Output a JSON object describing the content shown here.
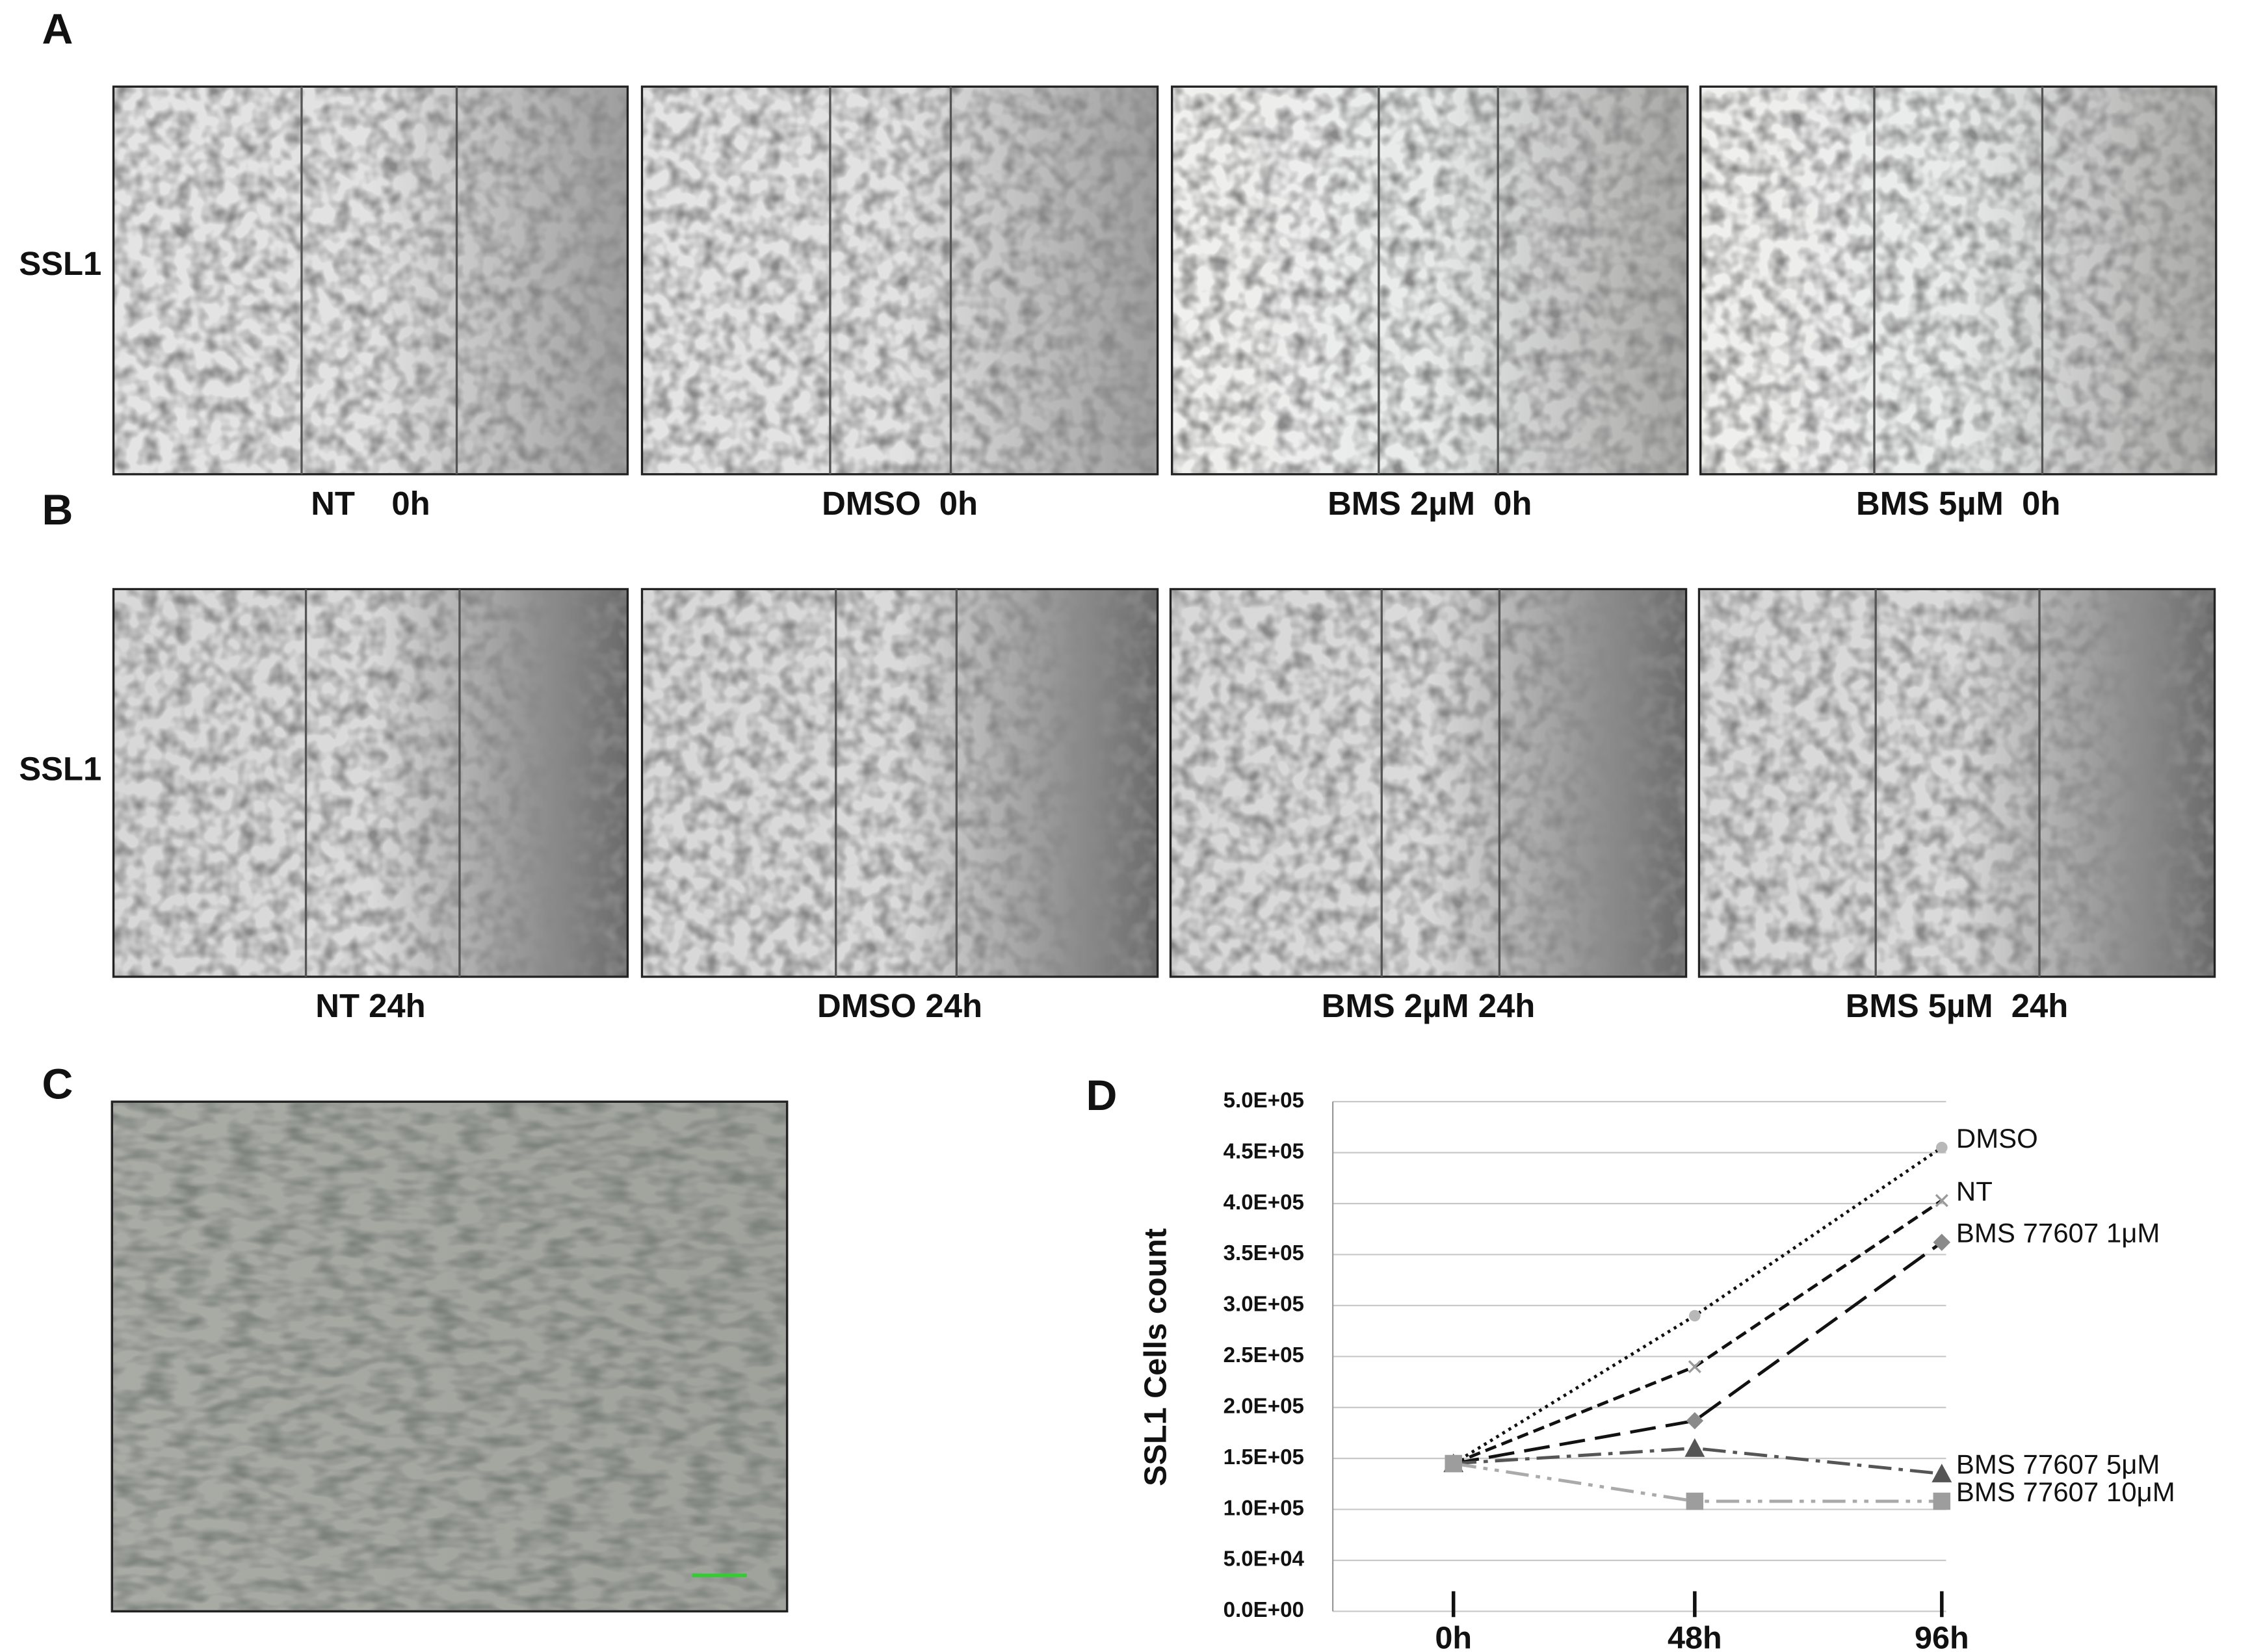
{
  "panels": {
    "A": {
      "label": "A",
      "row_label": "SSL1",
      "captions": [
        "NT    0h",
        "DMSO  0h",
        "BMS 2µM  0h",
        "BMS 5µM  0h"
      ]
    },
    "B": {
      "label": "B",
      "row_label": "SSL1",
      "captions": [
        "NT 24h",
        "DMSO 24h",
        "BMS 2µM 24h",
        "BMS 5µM  24h"
      ]
    },
    "C": {
      "label": "C"
    }
  },
  "chart_data": {
    "type": "line",
    "panel_label": "D",
    "y_label": "SSL1 Cells count",
    "categories": [
      "0h",
      "48h",
      "96h"
    ],
    "ylim": [
      0,
      500000
    ],
    "yticks": [
      {
        "value": 0,
        "label": "0.0E+00"
      },
      {
        "value": 50000,
        "label": "5.0E+04"
      },
      {
        "value": 100000,
        "label": "1.0E+05"
      },
      {
        "value": 150000,
        "label": "1.5E+05"
      },
      {
        "value": 200000,
        "label": "2.0E+05"
      },
      {
        "value": 250000,
        "label": "2.5E+05"
      },
      {
        "value": 300000,
        "label": "3.0E+05"
      },
      {
        "value": 350000,
        "label": "3.5E+05"
      },
      {
        "value": 400000,
        "label": "4.0E+05"
      },
      {
        "value": 450000,
        "label": "4.5E+05"
      },
      {
        "value": 500000,
        "label": "5.0E+05"
      }
    ],
    "grid": true,
    "series": [
      {
        "name": "DMSO",
        "color": "#b8b8b8",
        "line_color": "#111111",
        "line_style": "dotted",
        "marker": "circle",
        "values": [
          145000,
          290000,
          455000
        ]
      },
      {
        "name": "NT",
        "color": "#9a9a9a",
        "line_color": "#111111",
        "line_style": "dashed",
        "marker": "x",
        "values": [
          145000,
          240000,
          403000
        ]
      },
      {
        "name": "BMS 77607 1μM",
        "color": "#8a8a8a",
        "line_color": "#111111",
        "line_style": "long-dashed",
        "marker": "diamond",
        "values": [
          145000,
          187000,
          362000
        ]
      },
      {
        "name": "BMS 77607 5μM",
        "color": "#555555",
        "line_color": "#555555",
        "line_style": "dash-dot",
        "marker": "triangle",
        "values": [
          145000,
          160000,
          135000
        ]
      },
      {
        "name": "BMS 77607 10μM",
        "color": "#9d9d9d",
        "line_color": "#aaaaaa",
        "line_style": "dash-dot-dot",
        "marker": "square",
        "values": [
          145000,
          108000,
          108000
        ]
      }
    ]
  }
}
